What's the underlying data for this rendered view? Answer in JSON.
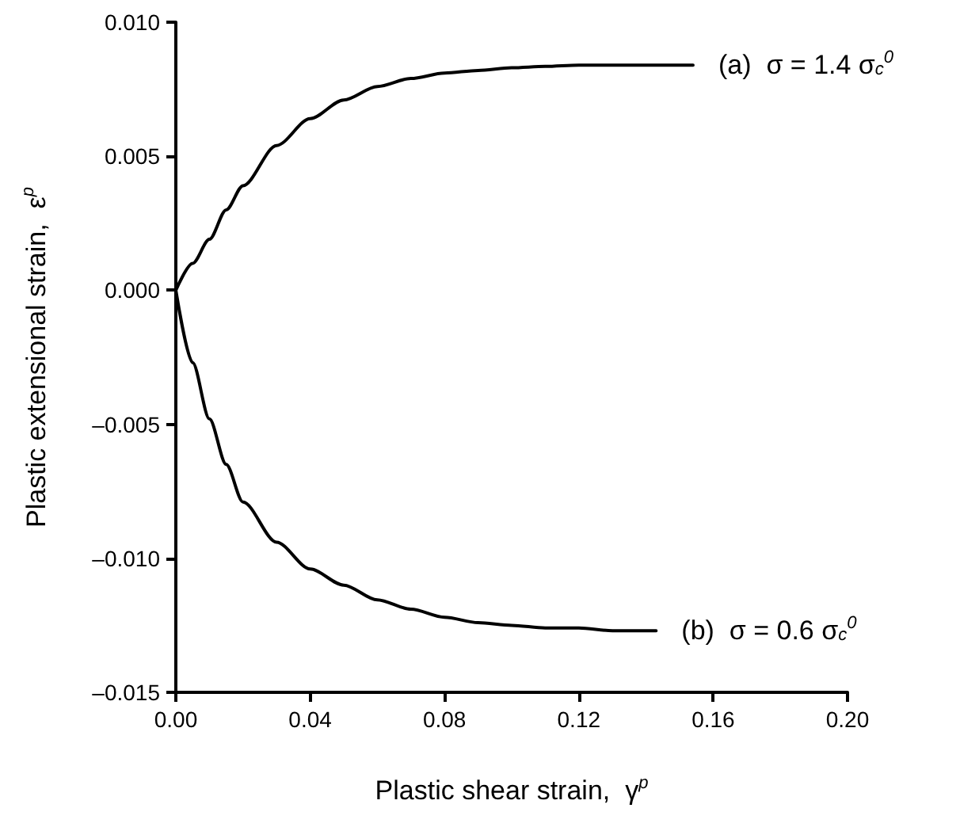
{
  "chart_data": {
    "type": "line",
    "xlabel": "Plastic shear strain,  γ$^{p}$",
    "ylabel": "Plastic extensional strain,  ε$^{p}$",
    "series": [
      {
        "color": "#000000",
        "x": [
          0,
          0.005,
          0.01,
          0.015,
          0.02,
          0.03,
          0.04,
          0.05,
          0.06,
          0.07,
          0.08,
          0.09,
          0.1,
          0.11,
          0.12,
          0.13,
          0.14,
          0.154
        ],
        "values": [
          0,
          0.001,
          0.0019,
          0.003,
          0.0039,
          0.0054,
          0.0064,
          0.0071,
          0.0076,
          0.0079,
          0.0081,
          0.0082,
          0.0083,
          0.00835,
          0.0084,
          0.0084,
          0.0084,
          0.0084
        ]
      },
      {
        "color": "#000000",
        "x": [
          0,
          0.005,
          0.01,
          0.015,
          0.02,
          0.03,
          0.04,
          0.05,
          0.06,
          0.07,
          0.08,
          0.09,
          0.1,
          0.11,
          0.12,
          0.13,
          0.143
        ],
        "values": [
          0,
          -0.0027,
          -0.0048,
          -0.0065,
          -0.0079,
          -0.0094,
          -0.0104,
          -0.011,
          -0.01155,
          -0.0119,
          -0.0122,
          -0.0124,
          -0.0125,
          -0.0126,
          -0.0126,
          -0.0127,
          -0.0127
        ]
      }
    ],
    "annotations": [
      {
        "text": "(a)  σ = 1.4 σ$_{c}$$^{0}$",
        "x": 0.154,
        "y": 0.0084
      },
      {
        "text": "(b)  σ = 0.6 σ$_{c}$$^{0}$",
        "x": 0.143,
        "y": -0.0127
      }
    ],
    "xlim": [
      0,
      0.2
    ],
    "xticks": [
      {
        "value": 0,
        "label": "0.00"
      },
      0.04,
      0.08,
      0.12,
      0.16,
      {
        "value": 0.2,
        "label": "0.20"
      }
    ],
    "ylim": [
      -0.015,
      0.01
    ],
    "yticks": [
      {
        "value": -0.015,
        "label": "–0.015"
      },
      {
        "value": -0.01,
        "label": "–0.010"
      },
      {
        "value": -0.005,
        "label": "–0.005"
      },
      {
        "value": 0,
        "label": "0.000"
      },
      0.005,
      {
        "value": 0.01,
        "label": "0.010"
      }
    ],
    "grid": false,
    "marker": "none",
    "line_style": "solid"
  }
}
